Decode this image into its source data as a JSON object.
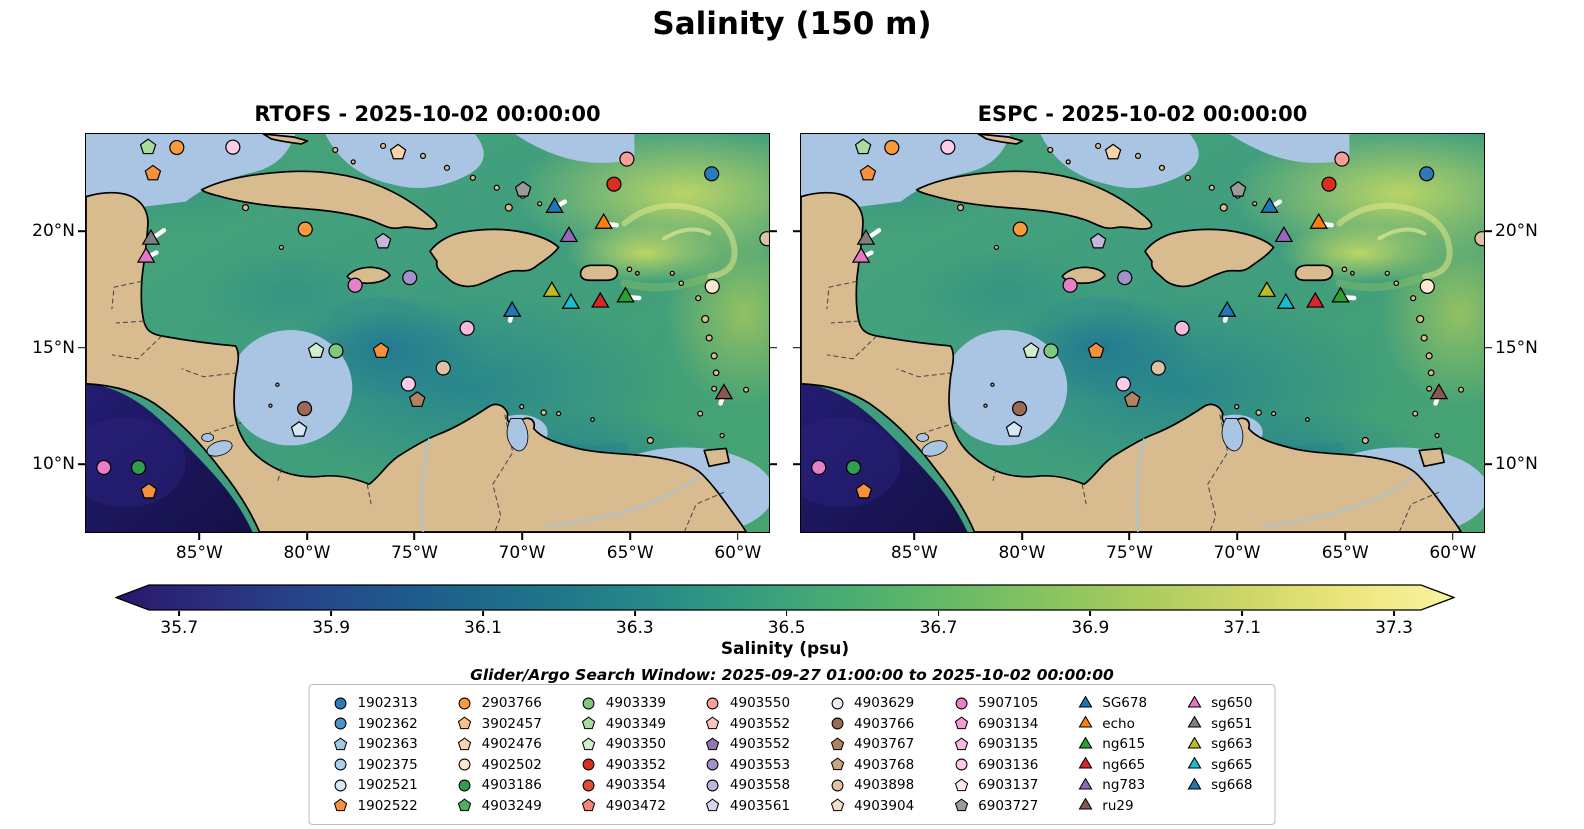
{
  "chart_data": {
    "type": "heatmap",
    "title": "Salinity (150 m)",
    "region": "Caribbean Sea",
    "panels": [
      {
        "model": "RTOFS",
        "title": "RTOFS - 2025-10-02 00:00:00"
      },
      {
        "model": "ESPC",
        "title": "ESPC - 2025-10-02 00:00:00"
      }
    ],
    "lon_ticks": [
      {
        "label": "85°W",
        "f": 16.7
      },
      {
        "label": "80°W",
        "f": 32.4
      },
      {
        "label": "75°W",
        "f": 48.1
      },
      {
        "label": "70°W",
        "f": 63.8
      },
      {
        "label": "65°W",
        "f": 79.6
      },
      {
        "label": "60°W",
        "f": 95.3
      }
    ],
    "lat_ticks": [
      {
        "label": "20°N",
        "f": 24.5
      },
      {
        "label": "15°N",
        "f": 53.7
      },
      {
        "label": "10°N",
        "f": 82.8
      }
    ],
    "colorbar": {
      "label": "Salinity (psu)",
      "tick_labels": [
        "35.7",
        "35.9",
        "36.1",
        "36.3",
        "36.5",
        "36.7",
        "36.9",
        "37.1",
        "37.3"
      ],
      "vmin": 35.7,
      "vmax": 37.3,
      "extend": "both",
      "colors": [
        "#28186b",
        "#2b2f7e",
        "#25498b",
        "#1e5d8b",
        "#1e718a",
        "#258589",
        "#339a80",
        "#47ac72",
        "#63b968",
        "#86c35f",
        "#abcc5e",
        "#cfd669",
        "#ece67e",
        "#f9f3a3"
      ]
    },
    "annotation": "Glider/Argo Search Window: 2025-09-27 01:00:00 to 2025-10-02 00:00:00",
    "legend_columns": [
      [
        {
          "label": "1902313",
          "shape": "circle",
          "color": "#2b7bba"
        },
        {
          "label": "1902362",
          "shape": "circle",
          "color": "#4b93c8"
        },
        {
          "label": "1902363",
          "shape": "pentagon",
          "color": "#9ec8e4"
        },
        {
          "label": "1902375",
          "shape": "circle",
          "color": "#abd0ea"
        },
        {
          "label": "1902521",
          "shape": "circle",
          "color": "#d6e8f5"
        },
        {
          "label": "1902522",
          "shape": "pentagon",
          "color": "#f7903d"
        }
      ],
      [
        {
          "label": "2903766",
          "shape": "circle",
          "color": "#fb9a3c"
        },
        {
          "label": "3902457",
          "shape": "pentagon",
          "color": "#fcc08a"
        },
        {
          "label": "4902476",
          "shape": "pentagon",
          "color": "#fdd3a9"
        },
        {
          "label": "4902502",
          "shape": "circle",
          "color": "#fde9d2"
        },
        {
          "label": "4903186",
          "shape": "circle",
          "color": "#2f9e4f"
        },
        {
          "label": "4903249",
          "shape": "pentagon",
          "color": "#4cb05e"
        }
      ],
      [
        {
          "label": "4903339",
          "shape": "circle",
          "color": "#7fc97f"
        },
        {
          "label": "4903349",
          "shape": "pentagon",
          "color": "#a8dba0"
        },
        {
          "label": "4903350",
          "shape": "pentagon",
          "color": "#d3eecd"
        },
        {
          "label": "4903352",
          "shape": "circle",
          "color": "#d7301f"
        },
        {
          "label": "4903354",
          "shape": "circle",
          "color": "#e34a33"
        },
        {
          "label": "4903472",
          "shape": "pentagon",
          "color": "#f58476"
        }
      ],
      [
        {
          "label": "4903550",
          "shape": "circle",
          "color": "#fa9e9a"
        },
        {
          "label": "4903552",
          "shape": "pentagon",
          "color": "#fcc5c0"
        },
        {
          "label": "4903552",
          "shape": "pentagon",
          "color": "#8f77b5"
        },
        {
          "label": "4903553",
          "shape": "circle",
          "color": "#a391c9"
        },
        {
          "label": "4903558",
          "shape": "circle",
          "color": "#c3b5dc"
        },
        {
          "label": "4903561",
          "shape": "pentagon",
          "color": "#dcd3ec"
        }
      ],
      [
        {
          "label": "4903629",
          "shape": "circle",
          "color": "#efeaf6"
        },
        {
          "label": "4903766",
          "shape": "circle",
          "color": "#9a6a54"
        },
        {
          "label": "4903767",
          "shape": "pentagon",
          "color": "#b08463"
        },
        {
          "label": "4903768",
          "shape": "pentagon",
          "color": "#c8a583"
        },
        {
          "label": "4903898",
          "shape": "circle",
          "color": "#dcc3a4"
        },
        {
          "label": "4903904",
          "shape": "pentagon",
          "color": "#f0e0cb"
        }
      ],
      [
        {
          "label": "5907105",
          "shape": "circle",
          "color": "#e87fc9"
        },
        {
          "label": "6903134",
          "shape": "pentagon",
          "color": "#f29bd4"
        },
        {
          "label": "6903135",
          "shape": "pentagon",
          "color": "#f8b8df"
        },
        {
          "label": "6903136",
          "shape": "circle",
          "color": "#fbcce8"
        },
        {
          "label": "6903137",
          "shape": "pentagon",
          "color": "#fde4f2"
        },
        {
          "label": "6903727",
          "shape": "pentagon",
          "color": "#9a9a9a"
        }
      ],
      [
        {
          "label": "SG678",
          "shape": "triangle",
          "color": "#1f77b4"
        },
        {
          "label": "echo",
          "shape": "triangle",
          "color": "#ff7f0e"
        },
        {
          "label": "ng615",
          "shape": "triangle",
          "color": "#2ca02c"
        },
        {
          "label": "ng665",
          "shape": "triangle",
          "color": "#d62728"
        },
        {
          "label": "ng783",
          "shape": "triangle",
          "color": "#9467bd"
        },
        {
          "label": "ru29",
          "shape": "triangle",
          "color": "#8c564b"
        }
      ],
      [
        {
          "label": "sg650",
          "shape": "triangle",
          "color": "#e377c2"
        },
        {
          "label": "sg651",
          "shape": "triangle",
          "color": "#7f7f7f"
        },
        {
          "label": "sg663",
          "shape": "triangle",
          "color": "#bcbd22"
        },
        {
          "label": "sg665",
          "shape": "triangle",
          "color": "#17becf"
        },
        {
          "label": "sg668",
          "shape": "triangle",
          "color": "#1f77b4"
        }
      ]
    ],
    "map_markers": [
      {
        "x": 9.1,
        "y": 3.3,
        "shape": "pentagon",
        "color": "#a8dba0"
      },
      {
        "x": 13.3,
        "y": 3.4,
        "shape": "circle",
        "color": "#fb9a3c"
      },
      {
        "x": 21.5,
        "y": 3.3,
        "shape": "circle",
        "color": "#fbcce8"
      },
      {
        "x": 9.8,
        "y": 9.9,
        "shape": "pentagon",
        "color": "#f7903d"
      },
      {
        "x": 45.7,
        "y": 4.6,
        "shape": "pentagon",
        "color": "#fdd3a9"
      },
      {
        "x": 79.2,
        "y": 6.3,
        "shape": "circle",
        "color": "#fa9e9a"
      },
      {
        "x": 91.6,
        "y": 10.0,
        "shape": "circle",
        "color": "#2b7bba"
      },
      {
        "x": 77.3,
        "y": 12.6,
        "shape": "circle",
        "color": "#d7301f"
      },
      {
        "x": 64.0,
        "y": 14.0,
        "shape": "pentagon",
        "color": "#9a9a9a"
      },
      {
        "x": 68.6,
        "y": 18.5,
        "shape": "triangle",
        "color": "#1f77b4",
        "tail": [
          1.5,
          -1.5
        ]
      },
      {
        "x": 75.8,
        "y": 22.5,
        "shape": "triangle",
        "color": "#ff7f0e",
        "tail": [
          1.9,
          0.4
        ]
      },
      {
        "x": 70.7,
        "y": 25.8,
        "shape": "triangle",
        "color": "#9467bd"
      },
      {
        "x": 9.5,
        "y": 26.5,
        "shape": "triangle",
        "color": "#7f7f7f",
        "tail": [
          1.9,
          -2.3
        ]
      },
      {
        "x": 8.8,
        "y": 31.0,
        "shape": "triangle",
        "color": "#e377c2",
        "tail": [
          1.5,
          -1.2
        ]
      },
      {
        "x": 32.1,
        "y": 23.9,
        "shape": "circle",
        "color": "#fb9a3c"
      },
      {
        "x": 43.5,
        "y": 27.0,
        "shape": "pentagon",
        "color": "#c3b5dc"
      },
      {
        "x": 39.4,
        "y": 38.0,
        "shape": "circle",
        "color": "#e87fc9"
      },
      {
        "x": 47.4,
        "y": 36.1,
        "shape": "circle",
        "color": "#a391c9"
      },
      {
        "x": 68.2,
        "y": 39.6,
        "shape": "triangle",
        "color": "#bcbd22"
      },
      {
        "x": 71.0,
        "y": 42.6,
        "shape": "triangle",
        "color": "#17becf"
      },
      {
        "x": 75.3,
        "y": 42.3,
        "shape": "triangle",
        "color": "#d62728"
      },
      {
        "x": 79.0,
        "y": 41.0,
        "shape": "triangle",
        "color": "#2ca02c",
        "tail": [
          2.0,
          0.2
        ]
      },
      {
        "x": 62.4,
        "y": 44.6,
        "shape": "triangle",
        "color": "#1f77b4",
        "tail": [
          -0.3,
          2.3
        ]
      },
      {
        "x": 91.7,
        "y": 38.3,
        "shape": "circle",
        "color": "#fde9d2"
      },
      {
        "x": 55.8,
        "y": 48.8,
        "shape": "circle",
        "color": "#f8b8df"
      },
      {
        "x": 52.3,
        "y": 58.8,
        "shape": "circle",
        "color": "#dcc3a4"
      },
      {
        "x": 33.7,
        "y": 54.5,
        "shape": "pentagon",
        "color": "#d3eecd"
      },
      {
        "x": 36.6,
        "y": 54.5,
        "shape": "circle",
        "color": "#7fc97f"
      },
      {
        "x": 43.2,
        "y": 54.5,
        "shape": "pentagon",
        "color": "#f7903d"
      },
      {
        "x": 47.2,
        "y": 62.8,
        "shape": "circle",
        "color": "#fbcce8"
      },
      {
        "x": 48.5,
        "y": 66.8,
        "shape": "pentagon",
        "color": "#b08463"
      },
      {
        "x": 32.0,
        "y": 69.0,
        "shape": "circle",
        "color": "#9a6a54"
      },
      {
        "x": 31.2,
        "y": 74.3,
        "shape": "pentagon",
        "color": "#d6e8f5"
      },
      {
        "x": 93.4,
        "y": 65.3,
        "shape": "triangle",
        "color": "#8c564b",
        "tail": [
          -0.5,
          2.4
        ]
      },
      {
        "x": 2.6,
        "y": 83.8,
        "shape": "circle",
        "color": "#e87fc9"
      },
      {
        "x": 7.7,
        "y": 83.8,
        "shape": "circle",
        "color": "#2f9e4f"
      },
      {
        "x": 9.2,
        "y": 89.8,
        "shape": "pentagon",
        "color": "#f7903d"
      },
      {
        "x": 99.7,
        "y": 26.3,
        "shape": "circle",
        "color": "#dcc3a4"
      }
    ],
    "map_colors": {
      "land": "#d8bc90",
      "coastline": "#000000",
      "shallow_masked": "#a9c5e3",
      "pacific_deep": "#1e1866"
    }
  }
}
